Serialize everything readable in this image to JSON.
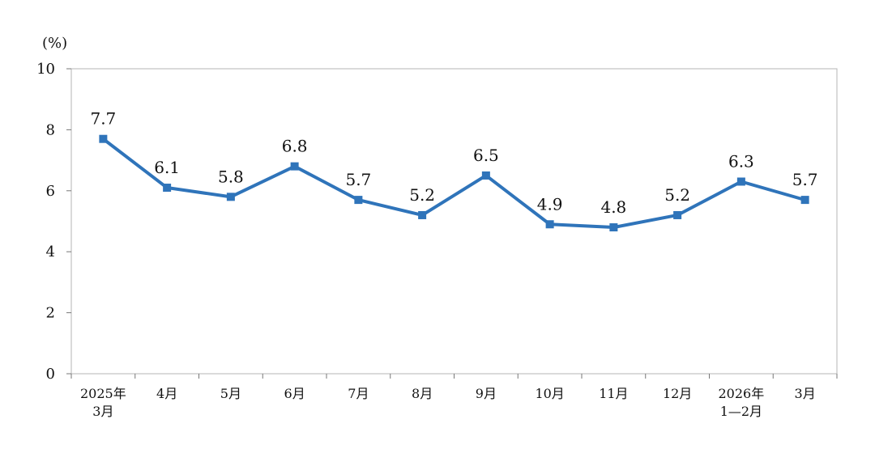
{
  "chart_data": {
    "type": "line",
    "ylabel": "(%)",
    "ylim": [
      0,
      10
    ],
    "yticks": [
      0,
      2,
      4,
      6,
      8,
      10
    ],
    "grid": false,
    "categories": [
      [
        "2025年",
        "3月"
      ],
      [
        "4月"
      ],
      [
        "5月"
      ],
      [
        "6月"
      ],
      [
        "7月"
      ],
      [
        "8月"
      ],
      [
        "9月"
      ],
      [
        "10月"
      ],
      [
        "11月"
      ],
      [
        "12月"
      ],
      [
        "2026年",
        "1—2月"
      ],
      [
        "3月"
      ]
    ],
    "series": [
      {
        "values": [
          7.7,
          6.1,
          5.8,
          6.8,
          5.7,
          5.2,
          6.5,
          4.9,
          4.8,
          5.2,
          6.3,
          5.7
        ],
        "labels": [
          "7.7",
          "6.1",
          "5.8",
          "6.8",
          "5.7",
          "5.2",
          "6.5",
          "4.9",
          "4.8",
          "5.2",
          "6.3",
          "5.7"
        ],
        "color": "#2F74BA",
        "marker": "square"
      }
    ]
  }
}
